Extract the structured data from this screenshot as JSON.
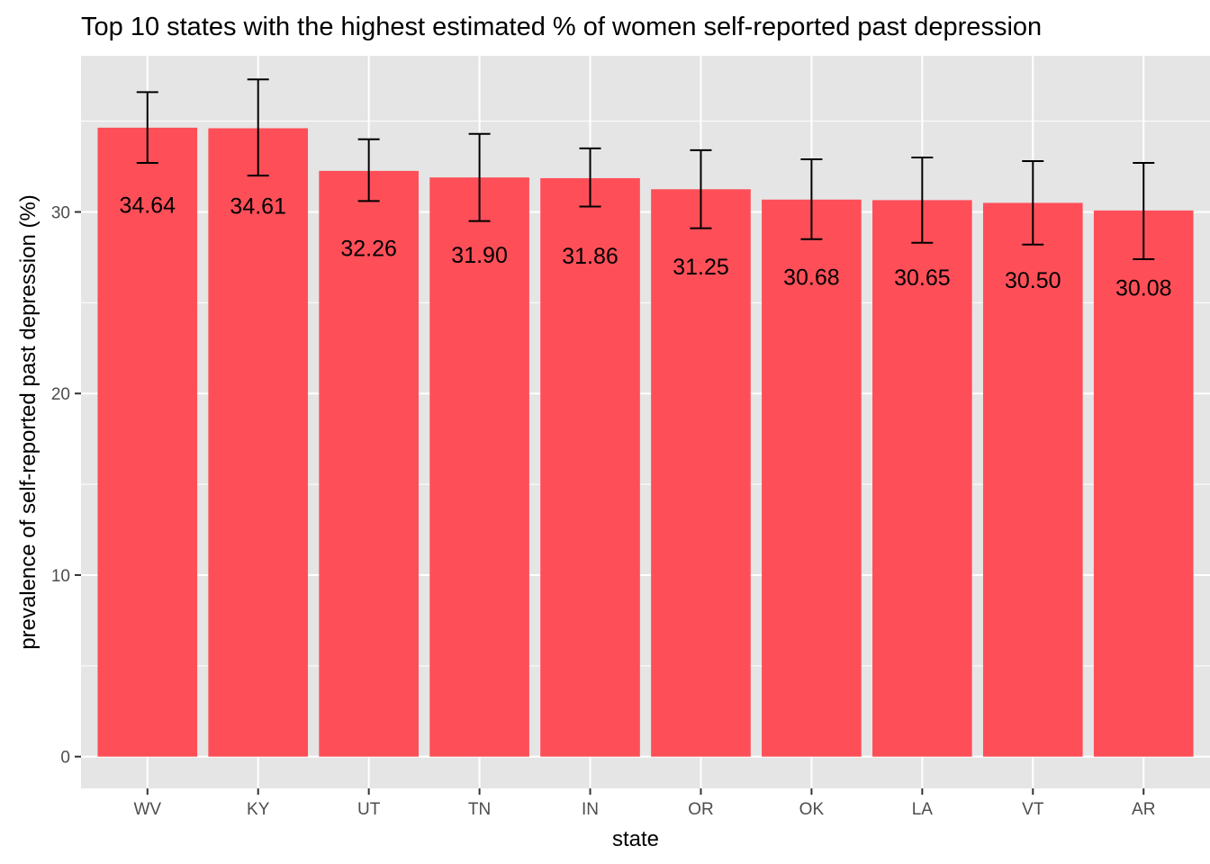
{
  "chart_data": {
    "type": "bar",
    "title": "Top 10 states with the highest estimated % of women self-reported past depression",
    "xlabel": "state",
    "ylabel": "prevalence of self-reported past depression (%)",
    "categories": [
      "WV",
      "KY",
      "UT",
      "TN",
      "IN",
      "OR",
      "OK",
      "LA",
      "VT",
      "AR"
    ],
    "values": [
      34.64,
      34.61,
      32.26,
      31.9,
      31.86,
      31.25,
      30.68,
      30.65,
      30.5,
      30.08
    ],
    "value_labels": [
      "34.64",
      "34.61",
      "32.26",
      "31.90",
      "31.86",
      "31.25",
      "30.68",
      "30.65",
      "30.50",
      "30.08"
    ],
    "error_low": [
      32.7,
      32.0,
      30.6,
      29.5,
      30.3,
      29.1,
      28.5,
      28.3,
      28.2,
      27.4
    ],
    "error_high": [
      36.6,
      37.3,
      34.0,
      34.3,
      33.5,
      33.4,
      32.9,
      33.0,
      32.8,
      32.7
    ],
    "yticks": [
      0,
      10,
      20,
      30
    ],
    "ylim": [
      -1.75,
      38.6
    ],
    "grid": true,
    "colors": {
      "bar": "#fe4f58",
      "panel": "#e5e5e5",
      "grid": "#ffffff",
      "errorbar": "#000000"
    }
  }
}
